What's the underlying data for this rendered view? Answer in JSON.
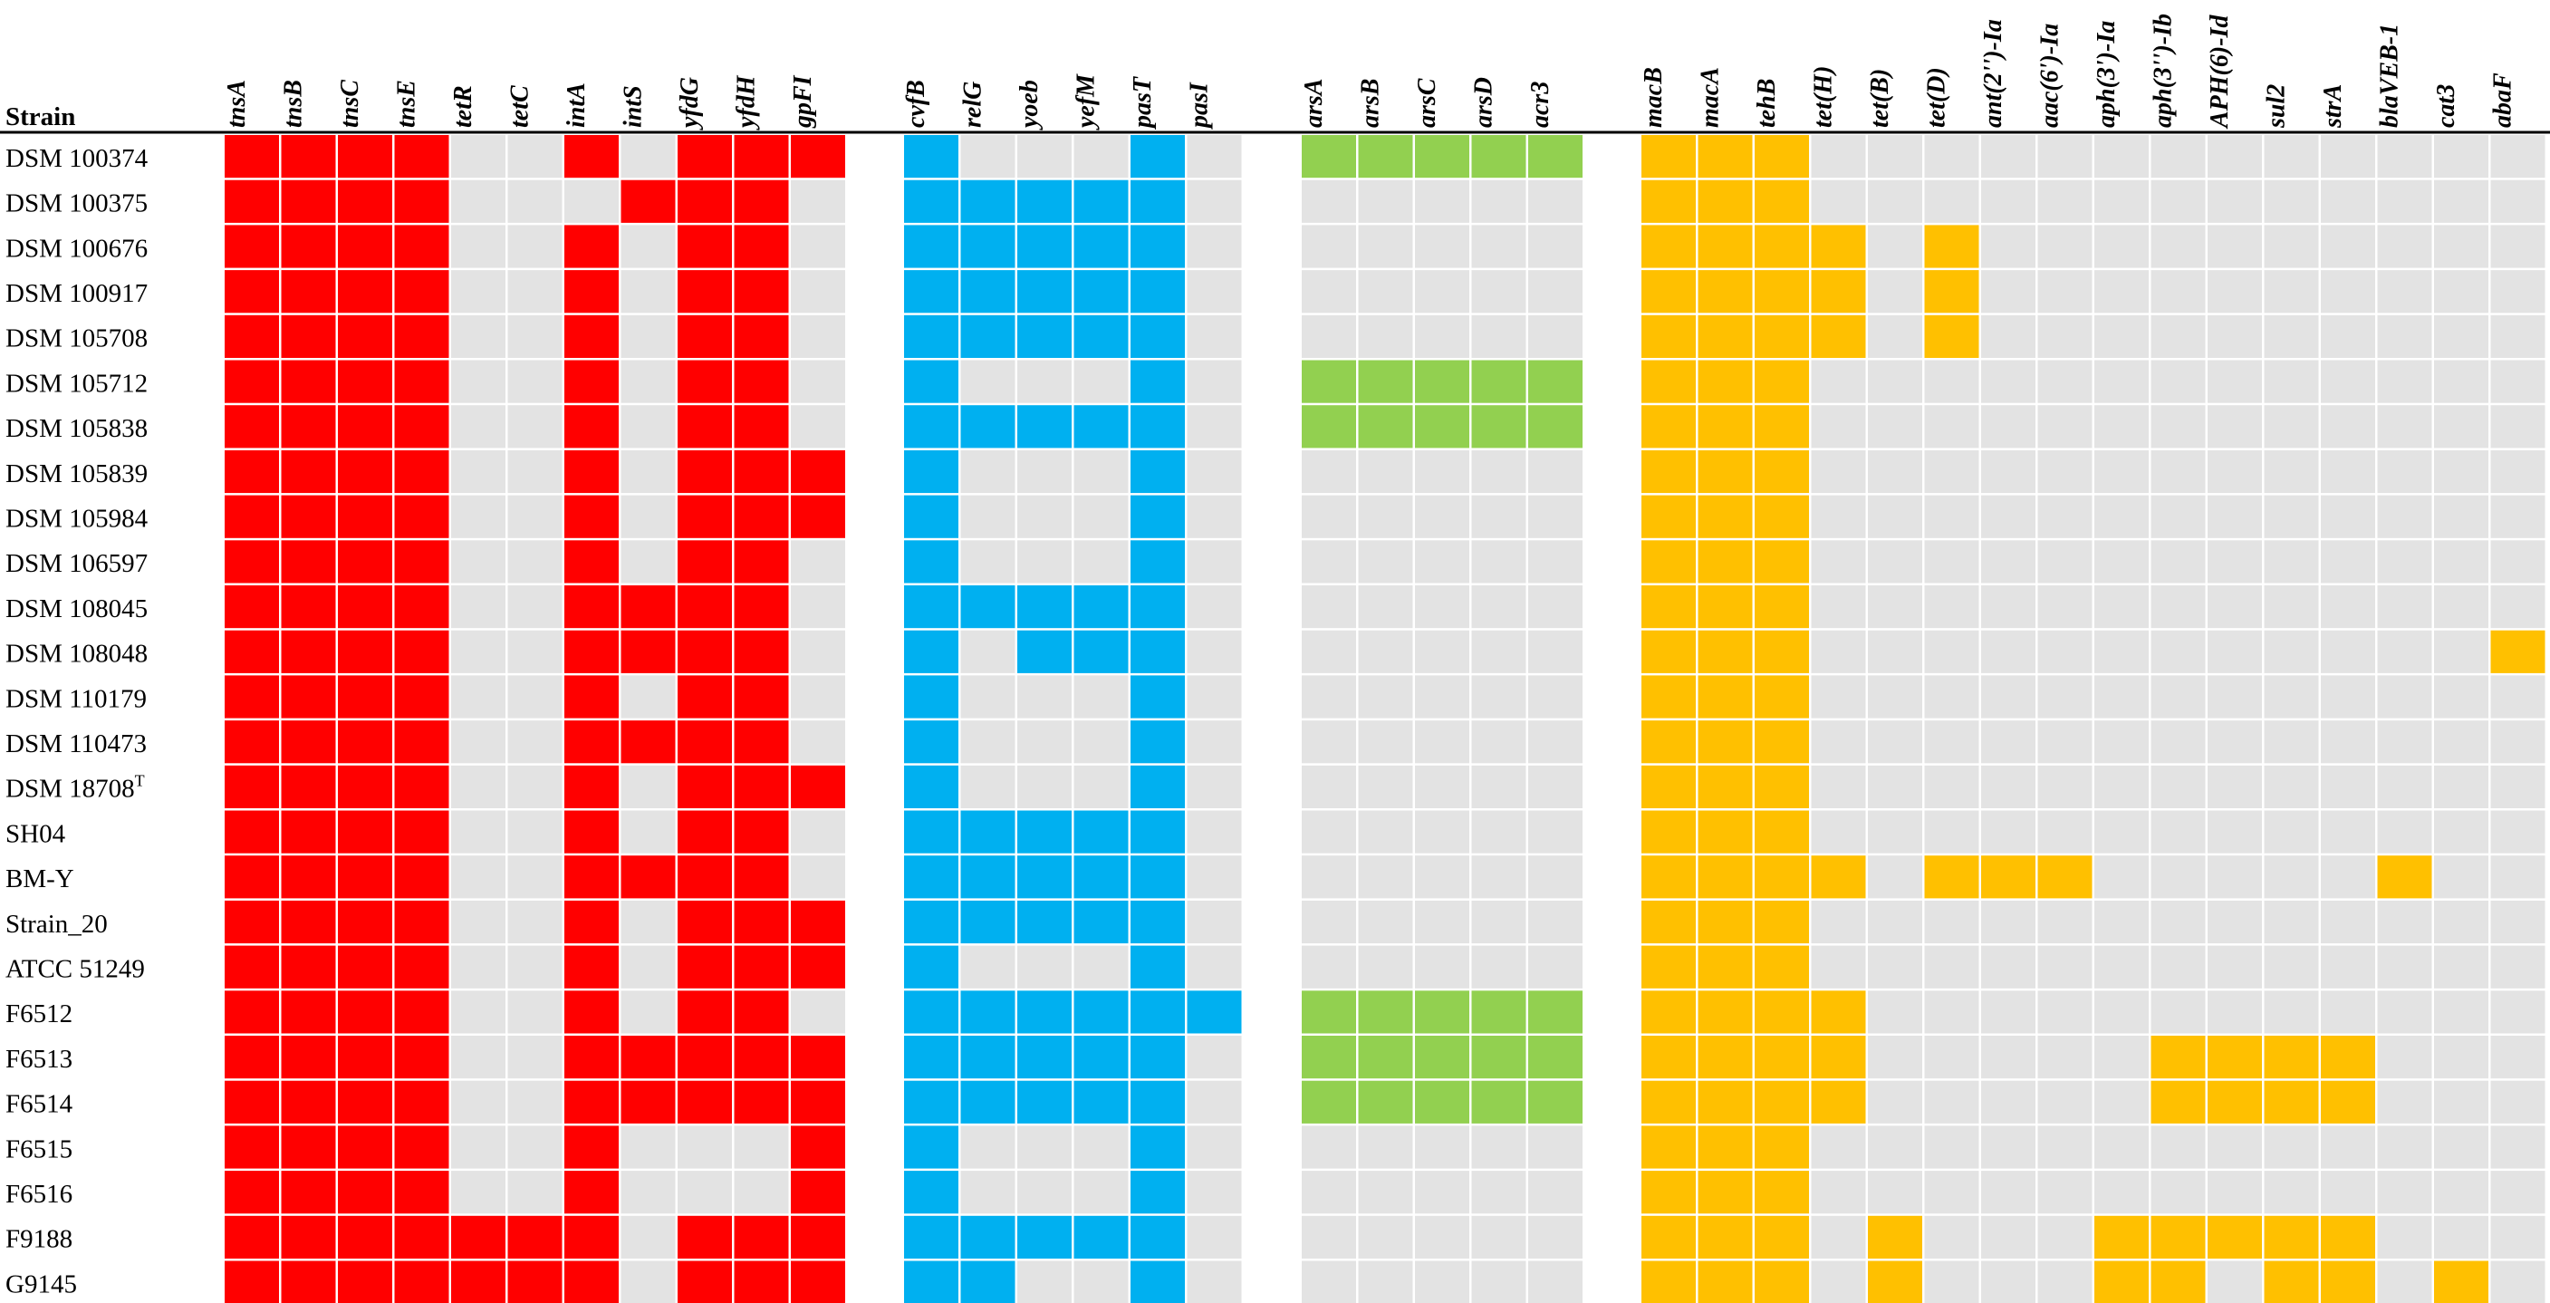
{
  "chart_data": {
    "type": "heatmap",
    "header": "Strain",
    "superscript_T": "T",
    "rows": [
      "DSM 100374",
      "DSM 100375",
      "DSM 100676",
      "DSM 100917",
      "DSM 105708",
      "DSM 105712",
      "DSM 105838",
      "DSM 105839",
      "DSM 105984",
      "DSM 106597",
      "DSM 108045",
      "DSM 108048",
      "DSM 110179",
      "DSM 110473",
      "DSM 18708",
      "SH04",
      "BM-Y",
      "Strain_20",
      "ATCC 51249",
      "F6512",
      "F6513",
      "F6514",
      "F6515",
      "F6516",
      "F9188",
      "G9145"
    ],
    "absent_color": "#e3e3e3",
    "groups": [
      {
        "color": "#ff0000",
        "columns": [
          "tnsA",
          "tnsB",
          "tnsC",
          "tnsE",
          "tetR",
          "tetC",
          "intA",
          "intS",
          "yfdG",
          "yfdH",
          "gpFI"
        ],
        "matrix": [
          [
            1,
            1,
            1,
            1,
            0,
            0,
            1,
            0,
            1,
            1,
            1
          ],
          [
            1,
            1,
            1,
            1,
            0,
            0,
            0,
            1,
            1,
            1,
            0
          ],
          [
            1,
            1,
            1,
            1,
            0,
            0,
            1,
            0,
            1,
            1,
            0
          ],
          [
            1,
            1,
            1,
            1,
            0,
            0,
            1,
            0,
            1,
            1,
            0
          ],
          [
            1,
            1,
            1,
            1,
            0,
            0,
            1,
            0,
            1,
            1,
            0
          ],
          [
            1,
            1,
            1,
            1,
            0,
            0,
            1,
            0,
            1,
            1,
            0
          ],
          [
            1,
            1,
            1,
            1,
            0,
            0,
            1,
            0,
            1,
            1,
            0
          ],
          [
            1,
            1,
            1,
            1,
            0,
            0,
            1,
            0,
            1,
            1,
            1
          ],
          [
            1,
            1,
            1,
            1,
            0,
            0,
            1,
            0,
            1,
            1,
            1
          ],
          [
            1,
            1,
            1,
            1,
            0,
            0,
            1,
            0,
            1,
            1,
            0
          ],
          [
            1,
            1,
            1,
            1,
            0,
            0,
            1,
            1,
            1,
            1,
            0
          ],
          [
            1,
            1,
            1,
            1,
            0,
            0,
            1,
            1,
            1,
            1,
            0
          ],
          [
            1,
            1,
            1,
            1,
            0,
            0,
            1,
            0,
            1,
            1,
            0
          ],
          [
            1,
            1,
            1,
            1,
            0,
            0,
            1,
            1,
            1,
            1,
            0
          ],
          [
            1,
            1,
            1,
            1,
            0,
            0,
            1,
            0,
            1,
            1,
            1
          ],
          [
            1,
            1,
            1,
            1,
            0,
            0,
            1,
            0,
            1,
            1,
            0
          ],
          [
            1,
            1,
            1,
            1,
            0,
            0,
            1,
            1,
            1,
            1,
            0
          ],
          [
            1,
            1,
            1,
            1,
            0,
            0,
            1,
            0,
            1,
            1,
            1
          ],
          [
            1,
            1,
            1,
            1,
            0,
            0,
            1,
            0,
            1,
            1,
            1
          ],
          [
            1,
            1,
            1,
            1,
            0,
            0,
            1,
            0,
            1,
            1,
            0
          ],
          [
            1,
            1,
            1,
            1,
            0,
            0,
            1,
            1,
            1,
            1,
            1
          ],
          [
            1,
            1,
            1,
            1,
            0,
            0,
            1,
            1,
            1,
            1,
            1
          ],
          [
            1,
            1,
            1,
            1,
            0,
            0,
            1,
            0,
            0,
            0,
            1
          ],
          [
            1,
            1,
            1,
            1,
            0,
            0,
            1,
            0,
            0,
            0,
            1
          ],
          [
            1,
            1,
            1,
            1,
            1,
            1,
            1,
            0,
            1,
            1,
            1
          ],
          [
            1,
            1,
            1,
            1,
            1,
            1,
            1,
            0,
            1,
            1,
            1
          ]
        ]
      },
      {
        "color": "#00b0f0",
        "columns": [
          "cvfB",
          "relG",
          "yoeb",
          "yefM",
          "pasT",
          "pasI"
        ],
        "matrix": [
          [
            1,
            0,
            0,
            0,
            1,
            0
          ],
          [
            1,
            1,
            1,
            1,
            1,
            0
          ],
          [
            1,
            1,
            1,
            1,
            1,
            0
          ],
          [
            1,
            1,
            1,
            1,
            1,
            0
          ],
          [
            1,
            1,
            1,
            1,
            1,
            0
          ],
          [
            1,
            0,
            0,
            0,
            1,
            0
          ],
          [
            1,
            1,
            1,
            1,
            1,
            0
          ],
          [
            1,
            0,
            0,
            0,
            1,
            0
          ],
          [
            1,
            0,
            0,
            0,
            1,
            0
          ],
          [
            1,
            0,
            0,
            0,
            1,
            0
          ],
          [
            1,
            1,
            1,
            1,
            1,
            0
          ],
          [
            1,
            0,
            1,
            1,
            1,
            0
          ],
          [
            1,
            0,
            0,
            0,
            1,
            0
          ],
          [
            1,
            0,
            0,
            0,
            1,
            0
          ],
          [
            1,
            0,
            0,
            0,
            1,
            0
          ],
          [
            1,
            1,
            1,
            1,
            1,
            0
          ],
          [
            1,
            1,
            1,
            1,
            1,
            0
          ],
          [
            1,
            1,
            1,
            1,
            1,
            0
          ],
          [
            1,
            0,
            0,
            0,
            1,
            0
          ],
          [
            1,
            1,
            1,
            1,
            1,
            1
          ],
          [
            1,
            1,
            1,
            1,
            1,
            0
          ],
          [
            1,
            1,
            1,
            1,
            1,
            0
          ],
          [
            1,
            0,
            0,
            0,
            1,
            0
          ],
          [
            1,
            0,
            0,
            0,
            1,
            0
          ],
          [
            1,
            1,
            1,
            1,
            1,
            0
          ],
          [
            1,
            1,
            0,
            0,
            1,
            0
          ]
        ]
      },
      {
        "color": "#92d050",
        "columns": [
          "arsA",
          "arsB",
          "arsC",
          "arsD",
          "acr3"
        ],
        "matrix": [
          [
            1,
            1,
            1,
            1,
            1
          ],
          [
            0,
            0,
            0,
            0,
            0
          ],
          [
            0,
            0,
            0,
            0,
            0
          ],
          [
            0,
            0,
            0,
            0,
            0
          ],
          [
            0,
            0,
            0,
            0,
            0
          ],
          [
            1,
            1,
            1,
            1,
            1
          ],
          [
            1,
            1,
            1,
            1,
            1
          ],
          [
            0,
            0,
            0,
            0,
            0
          ],
          [
            0,
            0,
            0,
            0,
            0
          ],
          [
            0,
            0,
            0,
            0,
            0
          ],
          [
            0,
            0,
            0,
            0,
            0
          ],
          [
            0,
            0,
            0,
            0,
            0
          ],
          [
            0,
            0,
            0,
            0,
            0
          ],
          [
            0,
            0,
            0,
            0,
            0
          ],
          [
            0,
            0,
            0,
            0,
            0
          ],
          [
            0,
            0,
            0,
            0,
            0
          ],
          [
            0,
            0,
            0,
            0,
            0
          ],
          [
            0,
            0,
            0,
            0,
            0
          ],
          [
            0,
            0,
            0,
            0,
            0
          ],
          [
            1,
            1,
            1,
            1,
            1
          ],
          [
            1,
            1,
            1,
            1,
            1
          ],
          [
            1,
            1,
            1,
            1,
            1
          ],
          [
            0,
            0,
            0,
            0,
            0
          ],
          [
            0,
            0,
            0,
            0,
            0
          ],
          [
            0,
            0,
            0,
            0,
            0
          ],
          [
            0,
            0,
            0,
            0,
            0
          ]
        ]
      },
      {
        "color": "#ffc000",
        "columns": [
          "macB",
          "macA",
          "tehB",
          "tet(H)",
          "tet(B)",
          "tet(D)",
          "ant(2'')-Ia",
          "aac(6')-Ia",
          "aph(3')-Ia",
          "aph(3'')-Ib",
          "APH(6)-Id",
          "sul2",
          "strA",
          "blaVEB-1",
          "cat3",
          "abaF"
        ],
        "matrix": [
          [
            1,
            1,
            1,
            0,
            0,
            0,
            0,
            0,
            0,
            0,
            0,
            0,
            0,
            0,
            0,
            0
          ],
          [
            1,
            1,
            1,
            0,
            0,
            0,
            0,
            0,
            0,
            0,
            0,
            0,
            0,
            0,
            0,
            0
          ],
          [
            1,
            1,
            1,
            1,
            0,
            1,
            0,
            0,
            0,
            0,
            0,
            0,
            0,
            0,
            0,
            0
          ],
          [
            1,
            1,
            1,
            1,
            0,
            1,
            0,
            0,
            0,
            0,
            0,
            0,
            0,
            0,
            0,
            0
          ],
          [
            1,
            1,
            1,
            1,
            0,
            1,
            0,
            0,
            0,
            0,
            0,
            0,
            0,
            0,
            0,
            0
          ],
          [
            1,
            1,
            1,
            0,
            0,
            0,
            0,
            0,
            0,
            0,
            0,
            0,
            0,
            0,
            0,
            0
          ],
          [
            1,
            1,
            1,
            0,
            0,
            0,
            0,
            0,
            0,
            0,
            0,
            0,
            0,
            0,
            0,
            0
          ],
          [
            1,
            1,
            1,
            0,
            0,
            0,
            0,
            0,
            0,
            0,
            0,
            0,
            0,
            0,
            0,
            0
          ],
          [
            1,
            1,
            1,
            0,
            0,
            0,
            0,
            0,
            0,
            0,
            0,
            0,
            0,
            0,
            0,
            0
          ],
          [
            1,
            1,
            1,
            0,
            0,
            0,
            0,
            0,
            0,
            0,
            0,
            0,
            0,
            0,
            0,
            0
          ],
          [
            1,
            1,
            1,
            0,
            0,
            0,
            0,
            0,
            0,
            0,
            0,
            0,
            0,
            0,
            0,
            0
          ],
          [
            1,
            1,
            1,
            0,
            0,
            0,
            0,
            0,
            0,
            0,
            0,
            0,
            0,
            0,
            0,
            1
          ],
          [
            1,
            1,
            1,
            0,
            0,
            0,
            0,
            0,
            0,
            0,
            0,
            0,
            0,
            0,
            0,
            0
          ],
          [
            1,
            1,
            1,
            0,
            0,
            0,
            0,
            0,
            0,
            0,
            0,
            0,
            0,
            0,
            0,
            0
          ],
          [
            1,
            1,
            1,
            0,
            0,
            0,
            0,
            0,
            0,
            0,
            0,
            0,
            0,
            0,
            0,
            0
          ],
          [
            1,
            1,
            1,
            0,
            0,
            0,
            0,
            0,
            0,
            0,
            0,
            0,
            0,
            0,
            0,
            0
          ],
          [
            1,
            1,
            1,
            1,
            0,
            1,
            1,
            1,
            0,
            0,
            0,
            0,
            0,
            1,
            0,
            0
          ],
          [
            1,
            1,
            1,
            0,
            0,
            0,
            0,
            0,
            0,
            0,
            0,
            0,
            0,
            0,
            0,
            0
          ],
          [
            1,
            1,
            1,
            0,
            0,
            0,
            0,
            0,
            0,
            0,
            0,
            0,
            0,
            0,
            0,
            0
          ],
          [
            1,
            1,
            1,
            1,
            0,
            0,
            0,
            0,
            0,
            0,
            0,
            0,
            0,
            0,
            0,
            0
          ],
          [
            1,
            1,
            1,
            1,
            0,
            0,
            0,
            0,
            0,
            1,
            1,
            1,
            1,
            0,
            0,
            0
          ],
          [
            1,
            1,
            1,
            1,
            0,
            0,
            0,
            0,
            0,
            1,
            1,
            1,
            1,
            0,
            0,
            0
          ],
          [
            1,
            1,
            1,
            0,
            0,
            0,
            0,
            0,
            0,
            0,
            0,
            0,
            0,
            0,
            0,
            0
          ],
          [
            1,
            1,
            1,
            0,
            0,
            0,
            0,
            0,
            0,
            0,
            0,
            0,
            0,
            0,
            0,
            0
          ],
          [
            1,
            1,
            1,
            0,
            1,
            0,
            0,
            0,
            1,
            1,
            1,
            1,
            1,
            0,
            0,
            0
          ],
          [
            1,
            1,
            1,
            0,
            1,
            0,
            0,
            0,
            1,
            1,
            0,
            1,
            1,
            0,
            1,
            0
          ]
        ]
      }
    ]
  }
}
